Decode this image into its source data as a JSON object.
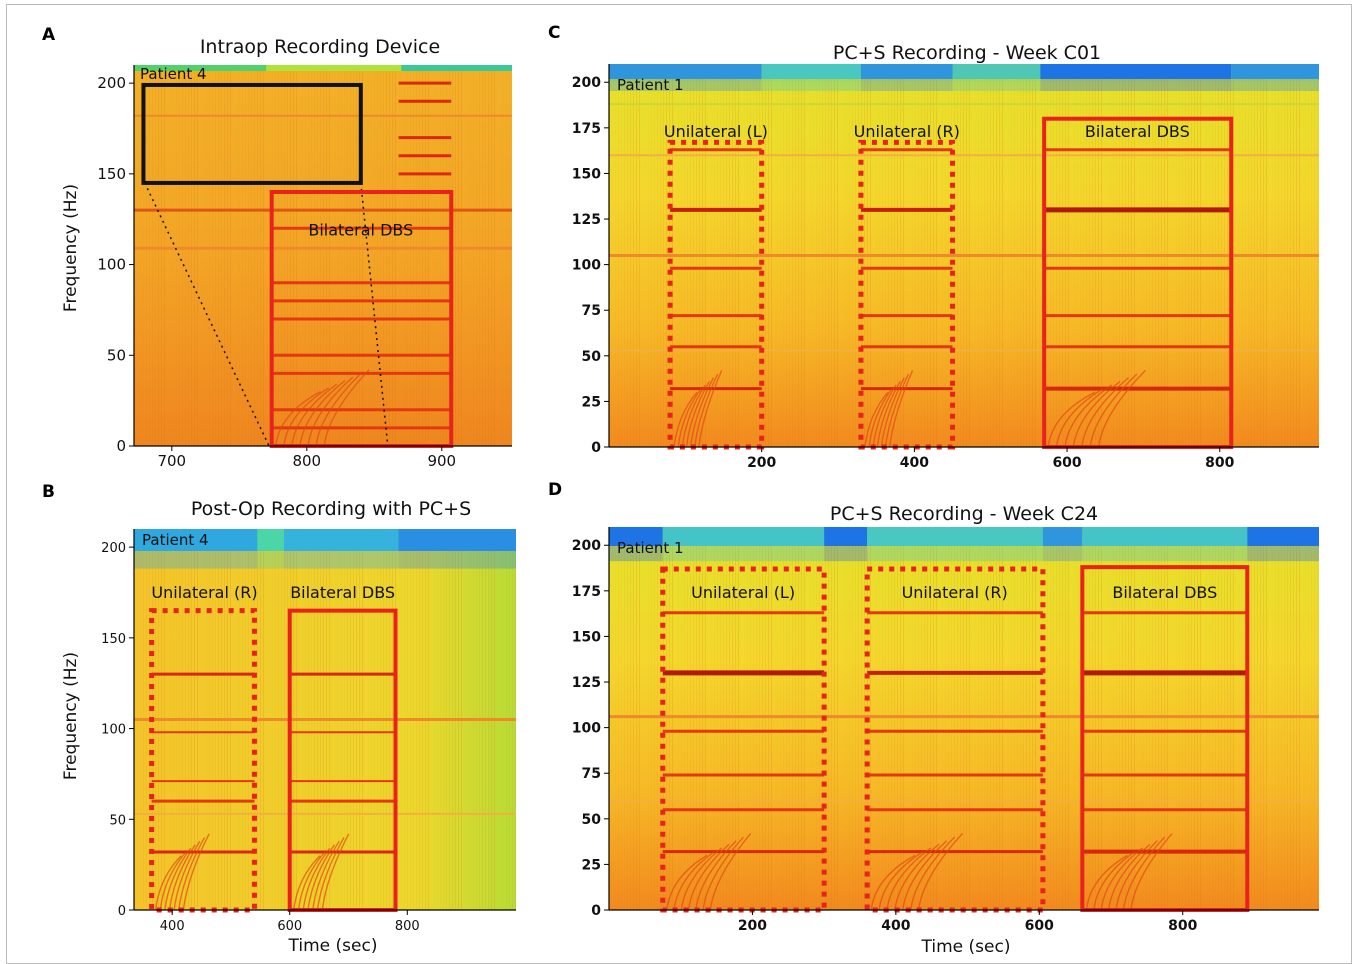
{
  "chart_data": [
    {
      "panel": "A",
      "type": "heatmap",
      "title": "Intraop Recording Device",
      "patient": "Patient 4",
      "xlabel": "",
      "ylabel": "Frequency (Hz)",
      "xlim": [
        672,
        952
      ],
      "ylim": [
        0,
        210
      ],
      "xticks": [
        700,
        800,
        900
      ],
      "yticks": [
        0,
        50,
        100,
        150,
        200
      ],
      "bold_ticks": false,
      "top_band": [
        [
          672,
          770,
          "#4fd26b"
        ],
        [
          770,
          870,
          "#aee33a"
        ],
        [
          870,
          952,
          "#38c99a"
        ]
      ],
      "lines": [
        {
          "y": 130,
          "x0": 672,
          "x1": 952,
          "color": "#e05518",
          "w": 3
        },
        {
          "y": 109,
          "x0": 672,
          "x1": 952,
          "color": "#ee8a2a",
          "w": 3
        },
        {
          "y": 182,
          "x0": 672,
          "x1": 952,
          "color": "#ee8a2a",
          "w": 2
        },
        {
          "y": 120,
          "x0": 774,
          "x1": 907,
          "color": "#e23a10",
          "w": 3
        },
        {
          "y": 90,
          "x0": 774,
          "x1": 907,
          "color": "#e23a10",
          "w": 3
        },
        {
          "y": 80,
          "x0": 774,
          "x1": 907,
          "color": "#e23a10",
          "w": 3
        },
        {
          "y": 70,
          "x0": 774,
          "x1": 907,
          "color": "#e23a10",
          "w": 3
        },
        {
          "y": 50,
          "x0": 774,
          "x1": 907,
          "color": "#e23a10",
          "w": 3
        },
        {
          "y": 40,
          "x0": 774,
          "x1": 907,
          "color": "#e23a10",
          "w": 3
        },
        {
          "y": 20,
          "x0": 774,
          "x1": 907,
          "color": "#e23a10",
          "w": 3
        },
        {
          "y": 10,
          "x0": 774,
          "x1": 907,
          "color": "#e23a10",
          "w": 3
        },
        {
          "y": 200,
          "x0": 868,
          "x1": 907,
          "color": "#d82a0a",
          "w": 3
        },
        {
          "y": 190,
          "x0": 868,
          "x1": 907,
          "color": "#d82a0a",
          "w": 3
        },
        {
          "y": 170,
          "x0": 868,
          "x1": 907,
          "color": "#d82a0a",
          "w": 3
        },
        {
          "y": 160,
          "x0": 868,
          "x1": 907,
          "color": "#d82a0a",
          "w": 3
        },
        {
          "y": 150,
          "x0": 868,
          "x1": 907,
          "color": "#d82a0a",
          "w": 3
        }
      ],
      "boxes": [
        {
          "x0": 774,
          "x1": 907,
          "y0": 0,
          "y1": 140,
          "style": "solid",
          "color": "#e8231d",
          "label": "Bilateral DBS",
          "lx": 840,
          "ly": 116
        },
        {
          "x0": 679,
          "x1": 840,
          "y0": 145,
          "y1": 199,
          "style": "solid",
          "color": "#111111",
          "label": "",
          "lx": 0,
          "ly": 0
        }
      ],
      "dotted_lines": [
        [
          680,
          145,
          772,
          0
        ],
        [
          840,
          145,
          860,
          0
        ]
      ]
    },
    {
      "panel": "B",
      "type": "heatmap",
      "title": "Post-Op Recording with PC+S",
      "patient": "Patient 4",
      "xlabel": "Time (sec)",
      "ylabel": "Frequency (Hz)",
      "xlim": [
        335,
        985
      ],
      "ylim": [
        0,
        210
      ],
      "xticks": [
        400,
        600,
        800
      ],
      "yticks": [
        0,
        50,
        100,
        150,
        200
      ],
      "bold_ticks": false,
      "top_band": [
        [
          335,
          545,
          "#2fa8df"
        ],
        [
          545,
          590,
          "#4cd6a8"
        ],
        [
          590,
          785,
          "#36b3dc"
        ],
        [
          785,
          985,
          "#2a8fe2"
        ]
      ],
      "lines": [
        {
          "y": 105,
          "x0": 335,
          "x1": 985,
          "color": "#ee8a2a",
          "w": 3
        },
        {
          "y": 53,
          "x0": 335,
          "x1": 985,
          "color": "#f1b040",
          "w": 2
        },
        {
          "y": 130,
          "x0": 365,
          "x1": 540,
          "color": "#d5280c",
          "w": 3
        },
        {
          "y": 98,
          "x0": 365,
          "x1": 540,
          "color": "#e23a10",
          "w": 2
        },
        {
          "y": 71,
          "x0": 365,
          "x1": 540,
          "color": "#e23a10",
          "w": 2
        },
        {
          "y": 60,
          "x0": 365,
          "x1": 540,
          "color": "#e23a10",
          "w": 3
        },
        {
          "y": 32,
          "x0": 365,
          "x1": 540,
          "color": "#d5280c",
          "w": 3
        },
        {
          "y": 130,
          "x0": 600,
          "x1": 780,
          "color": "#d5280c",
          "w": 3
        },
        {
          "y": 98,
          "x0": 600,
          "x1": 780,
          "color": "#e23a10",
          "w": 2
        },
        {
          "y": 71,
          "x0": 600,
          "x1": 780,
          "color": "#e23a10",
          "w": 2
        },
        {
          "y": 60,
          "x0": 600,
          "x1": 780,
          "color": "#e23a10",
          "w": 3
        },
        {
          "y": 32,
          "x0": 600,
          "x1": 780,
          "color": "#d5280c",
          "w": 3
        }
      ],
      "boxes": [
        {
          "x0": 365,
          "x1": 540,
          "y0": 0,
          "y1": 165,
          "style": "dotted",
          "color": "#e8231d",
          "label": "Unilateral (R)",
          "lx": 455,
          "ly": 172
        },
        {
          "x0": 600,
          "x1": 780,
          "y0": 0,
          "y1": 165,
          "style": "solid",
          "color": "#e8231d",
          "label": "Bilateral DBS",
          "lx": 690,
          "ly": 172
        }
      ],
      "dotted_lines": []
    },
    {
      "panel": "C",
      "type": "heatmap",
      "title": "PC+S Recording - Week C01",
      "patient": "Patient 1",
      "xlabel": "",
      "ylabel": "",
      "xlim": [
        0,
        930
      ],
      "ylim": [
        0,
        210
      ],
      "xticks": [
        200,
        400,
        600,
        800
      ],
      "yticks": [
        0,
        25,
        50,
        75,
        100,
        125,
        150,
        175,
        200
      ],
      "bold_ticks": true,
      "top_band": [
        [
          0,
          200,
          "#2f96de"
        ],
        [
          200,
          330,
          "#48c8c0"
        ],
        [
          330,
          450,
          "#2f96de"
        ],
        [
          450,
          565,
          "#4fc7b4"
        ],
        [
          565,
          815,
          "#1f74e5"
        ],
        [
          815,
          930,
          "#2f96de"
        ]
      ],
      "lines": [
        {
          "y": 105,
          "x0": 0,
          "x1": 930,
          "color": "#ee8a2a",
          "w": 3
        },
        {
          "y": 160,
          "x0": 0,
          "x1": 930,
          "color": "#f1b040",
          "w": 2
        },
        {
          "y": 53,
          "x0": 0,
          "x1": 930,
          "color": "#f1b040",
          "w": 2
        },
        {
          "y": 188,
          "x0": 0,
          "x1": 930,
          "color": "#c9d836",
          "w": 2
        },
        {
          "y": 163,
          "x0": 80,
          "x1": 200,
          "color": "#e23a10",
          "w": 3
        },
        {
          "y": 130,
          "x0": 80,
          "x1": 200,
          "color": "#c4200a",
          "w": 4
        },
        {
          "y": 98,
          "x0": 80,
          "x1": 200,
          "color": "#e23a10",
          "w": 3
        },
        {
          "y": 72,
          "x0": 80,
          "x1": 200,
          "color": "#e23a10",
          "w": 3
        },
        {
          "y": 55,
          "x0": 80,
          "x1": 200,
          "color": "#e23a10",
          "w": 3
        },
        {
          "y": 32,
          "x0": 80,
          "x1": 200,
          "color": "#d5280c",
          "w": 3
        },
        {
          "y": 163,
          "x0": 330,
          "x1": 450,
          "color": "#e23a10",
          "w": 3
        },
        {
          "y": 130,
          "x0": 330,
          "x1": 450,
          "color": "#c4200a",
          "w": 4
        },
        {
          "y": 98,
          "x0": 330,
          "x1": 450,
          "color": "#e23a10",
          "w": 3
        },
        {
          "y": 72,
          "x0": 330,
          "x1": 450,
          "color": "#e23a10",
          "w": 3
        },
        {
          "y": 55,
          "x0": 330,
          "x1": 450,
          "color": "#e23a10",
          "w": 3
        },
        {
          "y": 32,
          "x0": 330,
          "x1": 450,
          "color": "#d5280c",
          "w": 3
        },
        {
          "y": 163,
          "x0": 570,
          "x1": 815,
          "color": "#e23a10",
          "w": 3
        },
        {
          "y": 130,
          "x0": 570,
          "x1": 815,
          "color": "#b01a08",
          "w": 5
        },
        {
          "y": 98,
          "x0": 570,
          "x1": 815,
          "color": "#e23a10",
          "w": 3
        },
        {
          "y": 72,
          "x0": 570,
          "x1": 815,
          "color": "#e23a10",
          "w": 3
        },
        {
          "y": 55,
          "x0": 570,
          "x1": 815,
          "color": "#e23a10",
          "w": 3
        },
        {
          "y": 32,
          "x0": 570,
          "x1": 815,
          "color": "#d5280c",
          "w": 4
        }
      ],
      "boxes": [
        {
          "x0": 80,
          "x1": 200,
          "y0": 0,
          "y1": 167,
          "style": "dotted",
          "color": "#e8231d",
          "label": "Unilateral (L)",
          "lx": 140,
          "ly": 170
        },
        {
          "x0": 330,
          "x1": 450,
          "y0": 0,
          "y1": 167,
          "style": "dotted",
          "color": "#e8231d",
          "label": "Unilateral (R)",
          "lx": 390,
          "ly": 170
        },
        {
          "x0": 570,
          "x1": 815,
          "y0": 0,
          "y1": 180,
          "style": "solid",
          "color": "#e8231d",
          "label": "Bilateral DBS",
          "lx": 692,
          "ly": 170
        }
      ],
      "dotted_lines": []
    },
    {
      "panel": "D",
      "type": "heatmap",
      "title": "PC+S Recording - Week C24",
      "patient": "Patient 1",
      "xlabel": "Time (sec)",
      "ylabel": "",
      "xlim": [
        0,
        990
      ],
      "ylim": [
        0,
        210
      ],
      "xticks": [
        200,
        400,
        600,
        800
      ],
      "yticks": [
        0,
        25,
        50,
        75,
        100,
        125,
        150,
        175,
        200
      ],
      "bold_ticks": true,
      "top_band": [
        [
          0,
          75,
          "#1f74e5"
        ],
        [
          75,
          300,
          "#45c4c8"
        ],
        [
          300,
          360,
          "#1f74e5"
        ],
        [
          360,
          605,
          "#48c8c0"
        ],
        [
          605,
          660,
          "#2f96de"
        ],
        [
          660,
          890,
          "#45c4c8"
        ],
        [
          890,
          990,
          "#1f74e5"
        ]
      ],
      "lines": [
        {
          "y": 106,
          "x0": 0,
          "x1": 990,
          "color": "#ee8a2a",
          "w": 3
        },
        {
          "y": 60,
          "x0": 0,
          "x1": 990,
          "color": "#f1b040",
          "w": 2
        },
        {
          "y": 163,
          "x0": 75,
          "x1": 300,
          "color": "#e23a10",
          "w": 3
        },
        {
          "y": 130,
          "x0": 75,
          "x1": 300,
          "color": "#b01a08",
          "w": 5
        },
        {
          "y": 98,
          "x0": 75,
          "x1": 300,
          "color": "#e23a10",
          "w": 3
        },
        {
          "y": 74,
          "x0": 75,
          "x1": 300,
          "color": "#e23a10",
          "w": 3
        },
        {
          "y": 55,
          "x0": 75,
          "x1": 300,
          "color": "#e23a10",
          "w": 3
        },
        {
          "y": 32,
          "x0": 75,
          "x1": 300,
          "color": "#d5280c",
          "w": 3
        },
        {
          "y": 163,
          "x0": 360,
          "x1": 605,
          "color": "#e23a10",
          "w": 3
        },
        {
          "y": 130,
          "x0": 360,
          "x1": 605,
          "color": "#c4200a",
          "w": 4
        },
        {
          "y": 98,
          "x0": 360,
          "x1": 605,
          "color": "#e23a10",
          "w": 3
        },
        {
          "y": 74,
          "x0": 360,
          "x1": 605,
          "color": "#e23a10",
          "w": 3
        },
        {
          "y": 55,
          "x0": 360,
          "x1": 605,
          "color": "#e23a10",
          "w": 3
        },
        {
          "y": 32,
          "x0": 360,
          "x1": 605,
          "color": "#d5280c",
          "w": 3
        },
        {
          "y": 163,
          "x0": 660,
          "x1": 890,
          "color": "#e23a10",
          "w": 3
        },
        {
          "y": 130,
          "x0": 660,
          "x1": 890,
          "color": "#b01a08",
          "w": 5
        },
        {
          "y": 98,
          "x0": 660,
          "x1": 890,
          "color": "#e23a10",
          "w": 3
        },
        {
          "y": 74,
          "x0": 660,
          "x1": 890,
          "color": "#e23a10",
          "w": 3
        },
        {
          "y": 55,
          "x0": 660,
          "x1": 890,
          "color": "#e23a10",
          "w": 3
        },
        {
          "y": 32,
          "x0": 660,
          "x1": 890,
          "color": "#d5280c",
          "w": 4
        }
      ],
      "boxes": [
        {
          "x0": 75,
          "x1": 300,
          "y0": 0,
          "y1": 187,
          "style": "dotted",
          "color": "#e8231d",
          "label": "Unilateral (L)",
          "lx": 187,
          "ly": 171
        },
        {
          "x0": 360,
          "x1": 605,
          "y0": 0,
          "y1": 187,
          "style": "dotted",
          "color": "#e8231d",
          "label": "Unilateral (R)",
          "lx": 482,
          "ly": 171
        },
        {
          "x0": 660,
          "x1": 890,
          "y0": 0,
          "y1": 188,
          "style": "solid",
          "color": "#e8231d",
          "label": "Bilateral DBS",
          "lx": 775,
          "ly": 171
        }
      ],
      "dotted_lines": []
    }
  ]
}
